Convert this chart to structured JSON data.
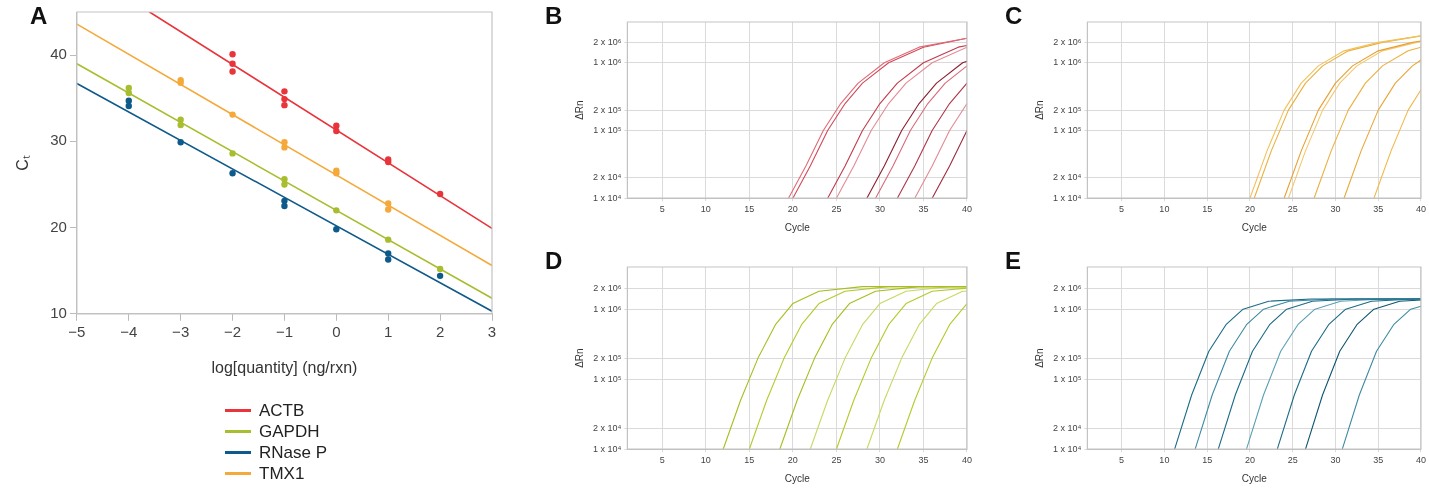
{
  "chart_data": [
    {
      "type": "scatter",
      "title": "A",
      "xlabel": "log[quantity] (ng/rxn)",
      "ylabel": "Cₜ",
      "xlim": [
        -5,
        3
      ],
      "xticks": [
        {
          "value": -5,
          "label": "−5"
        },
        {
          "value": -4,
          "label": "−4"
        },
        {
          "value": -3,
          "label": "−3"
        },
        {
          "value": -2,
          "label": "−2"
        },
        {
          "value": -1,
          "label": "−1"
        },
        0,
        1,
        2,
        3
      ],
      "ylim": [
        10,
        45
      ],
      "yticks": [
        10,
        20,
        30,
        40
      ],
      "grid": false,
      "legend": "bottom",
      "series": [
        {
          "name": "ACTB",
          "type": "line",
          "marker": "none",
          "color": "#e8343a",
          "x": [
            -3.6,
            3
          ],
          "values": [
            45,
            19.9
          ]
        },
        {
          "name": "GAPDH",
          "type": "line",
          "marker": "none",
          "color": "#a8bd2f",
          "x": [
            -5,
            3
          ],
          "values": [
            39.0,
            11.8
          ]
        },
        {
          "name": "RNase P",
          "type": "line",
          "marker": "none",
          "color": "#0e5a8a",
          "x": [
            -5,
            3
          ],
          "values": [
            36.7,
            10.3
          ]
        },
        {
          "name": "TMX1",
          "type": "line",
          "marker": "none",
          "color": "#f5a93a",
          "x": [
            -5,
            3
          ],
          "values": [
            43.6,
            15.6
          ]
        },
        {
          "type": "scatter",
          "marker": "circle",
          "color": "#e8343a",
          "x": [
            -2,
            -2,
            -2,
            -1,
            -1,
            -1,
            0,
            0,
            1,
            1,
            2
          ],
          "values": [
            40.1,
            39.0,
            38.1,
            35.8,
            34.9,
            34.2,
            31.8,
            31.2,
            27.9,
            27.6,
            23.9
          ]
        },
        {
          "type": "scatter",
          "marker": "circle",
          "color": "#a8bd2f",
          "x": [
            -4,
            -4,
            -3,
            -3,
            -2,
            -1,
            -1,
            0,
            1,
            2
          ],
          "values": [
            36.2,
            35.6,
            32.5,
            31.9,
            28.6,
            25.6,
            25.0,
            22.0,
            18.6,
            15.2
          ]
        },
        {
          "type": "scatter",
          "marker": "circle",
          "color": "#0e5a8a",
          "x": [
            -4,
            -4,
            -3,
            -2,
            -1,
            -1,
            0,
            1,
            1,
            2
          ],
          "values": [
            34.7,
            34.1,
            29.9,
            26.3,
            23.1,
            22.5,
            19.8,
            17.0,
            16.3,
            14.4
          ]
        },
        {
          "type": "scatter",
          "marker": "circle",
          "color": "#f5a93a",
          "x": [
            -3,
            -3,
            -2,
            -1,
            -1,
            0,
            0,
            1,
            1
          ],
          "values": [
            37.1,
            36.8,
            33.1,
            29.9,
            29.3,
            26.6,
            26.3,
            22.8,
            22.1
          ]
        }
      ]
    },
    {
      "type": "line",
      "title": "B",
      "xlabel": "Cycle",
      "ylabel": "ΔRn",
      "log": "y",
      "xlim": [
        1,
        40
      ],
      "xticks": [
        5,
        10,
        15,
        20,
        25,
        30,
        35,
        40
      ],
      "ylim": [
        10000,
        4000000
      ],
      "yticks": [
        {
          "value": 10000,
          "label": "1 x 10⁴"
        },
        {
          "value": 20000,
          "label": "2 x 10⁴"
        },
        {
          "value": 100000,
          "label": "1 x 10⁵"
        },
        {
          "value": 200000,
          "label": "2 x 10⁵"
        },
        {
          "value": 1000000,
          "label": "1 x 10⁶"
        },
        {
          "value": 2000000,
          "label": "2 x 10⁶"
        }
      ],
      "grid": true,
      "marker": "none",
      "series": [
        {
          "color": "#e06a76",
          "x": [
            19.5,
            21.5,
            23.5,
            25.5,
            27.5,
            30.5,
            34.5,
            40
          ],
          "values": [
            10000,
            30000,
            100000,
            250000,
            500000,
            1000000,
            1700000,
            2300000
          ]
        },
        {
          "color": "#d04a5a",
          "x": [
            20,
            22,
            24,
            26,
            28,
            31,
            35,
            40
          ],
          "values": [
            10000,
            30000,
            100000,
            250000,
            500000,
            1000000,
            1700000,
            2300000
          ]
        },
        {
          "color": "#c23a4c",
          "x": [
            24,
            26,
            28,
            30,
            32,
            35,
            39,
            40
          ],
          "values": [
            10000,
            30000,
            100000,
            250000,
            500000,
            1000000,
            1700000,
            1800000
          ]
        },
        {
          "color": "#e48a94",
          "x": [
            25,
            27,
            29,
            31,
            33,
            36,
            40
          ],
          "values": [
            10000,
            30000,
            100000,
            250000,
            500000,
            1000000,
            1700000
          ]
        },
        {
          "color": "#8c1d2e",
          "x": [
            28.5,
            30.5,
            32.5,
            34.5,
            36.5,
            39.5,
            40
          ],
          "values": [
            10000,
            30000,
            100000,
            250000,
            500000,
            1000000,
            1050000
          ]
        },
        {
          "color": "#d86a7a",
          "x": [
            29.5,
            31.5,
            33.5,
            35.5,
            37.5,
            40
          ],
          "values": [
            10000,
            30000,
            100000,
            250000,
            500000,
            900000
          ]
        },
        {
          "color": "#b03448",
          "x": [
            32,
            34,
            36,
            38,
            40
          ],
          "values": [
            10000,
            30000,
            100000,
            250000,
            500000
          ]
        },
        {
          "color": "#e08a96",
          "x": [
            34,
            36,
            38,
            40
          ],
          "values": [
            10000,
            30000,
            100000,
            250000
          ]
        },
        {
          "color": "#a02a40",
          "x": [
            36,
            38,
            40
          ],
          "values": [
            10000,
            30000,
            100000
          ]
        }
      ]
    },
    {
      "type": "line",
      "title": "C",
      "xlabel": "Cycle",
      "ylabel": "ΔRn",
      "log": "y",
      "xlim": [
        1,
        40
      ],
      "xticks": [
        5,
        10,
        15,
        20,
        25,
        30,
        35,
        40
      ],
      "ylim": [
        10000,
        4000000
      ],
      "yticks": [
        {
          "value": 10000,
          "label": "1 x 10⁴"
        },
        {
          "value": 20000,
          "label": "2 x 10⁴"
        },
        {
          "value": 100000,
          "label": "1 x 10⁵"
        },
        {
          "value": 200000,
          "label": "2 x 10⁵"
        },
        {
          "value": 1000000,
          "label": "1 x 10⁶"
        },
        {
          "value": 2000000,
          "label": "2 x 10⁶"
        }
      ],
      "grid": true,
      "marker": "none",
      "series": [
        {
          "color": "#f2c25a",
          "x": [
            20,
            22,
            24,
            26,
            28,
            31,
            35,
            40
          ],
          "values": [
            10000,
            50000,
            200000,
            500000,
            900000,
            1500000,
            2000000,
            2500000
          ]
        },
        {
          "color": "#eab040",
          "x": [
            20.5,
            22.5,
            24.5,
            26.5,
            28.5,
            31.5,
            35.5,
            40
          ],
          "values": [
            10000,
            50000,
            200000,
            500000,
            900000,
            1500000,
            2000000,
            2500000
          ]
        },
        {
          "color": "#e8a030",
          "x": [
            24,
            26,
            28,
            30,
            32,
            35,
            39,
            40
          ],
          "values": [
            10000,
            50000,
            200000,
            500000,
            900000,
            1500000,
            2000000,
            2100000
          ]
        },
        {
          "color": "#f4c870",
          "x": [
            24.5,
            26.5,
            28.5,
            30.5,
            32.5,
            35.5,
            39.5,
            40
          ],
          "values": [
            10000,
            50000,
            200000,
            500000,
            900000,
            1500000,
            2000000,
            2100000
          ]
        },
        {
          "color": "#eab040",
          "x": [
            27.5,
            29.5,
            31.5,
            33.5,
            35.5,
            38.5,
            40
          ],
          "values": [
            10000,
            50000,
            200000,
            500000,
            900000,
            1500000,
            1700000
          ]
        },
        {
          "color": "#e8a838",
          "x": [
            31,
            33,
            35,
            37,
            39,
            40
          ],
          "values": [
            10000,
            50000,
            200000,
            500000,
            900000,
            1100000
          ]
        },
        {
          "color": "#f0b84a",
          "x": [
            34.5,
            36.5,
            38.5,
            40
          ],
          "values": [
            10000,
            50000,
            200000,
            400000
          ]
        }
      ]
    },
    {
      "type": "line",
      "title": "D",
      "xlabel": "Cycle",
      "ylabel": "ΔRn",
      "log": "y",
      "xlim": [
        1,
        40
      ],
      "xticks": [
        5,
        10,
        15,
        20,
        25,
        30,
        35,
        40
      ],
      "ylim": [
        10000,
        4000000
      ],
      "yticks": [
        {
          "value": 10000,
          "label": "1 x 10⁴"
        },
        {
          "value": 20000,
          "label": "2 x 10⁴"
        },
        {
          "value": 100000,
          "label": "1 x 10⁵"
        },
        {
          "value": 200000,
          "label": "2 x 10⁵"
        },
        {
          "value": 1000000,
          "label": "1 x 10⁶"
        },
        {
          "value": 2000000,
          "label": "2 x 10⁶"
        }
      ],
      "grid": true,
      "marker": "none",
      "series": [
        {
          "color": "#a8bd1e",
          "x": [
            12,
            14,
            16,
            18,
            20,
            23,
            28,
            40
          ],
          "values": [
            10000,
            50000,
            200000,
            600000,
            1200000,
            1800000,
            2100000,
            2100000
          ]
        },
        {
          "color": "#b5c92a",
          "x": [
            15,
            17,
            19,
            21,
            23,
            26,
            31,
            40
          ],
          "values": [
            10000,
            50000,
            200000,
            600000,
            1200000,
            1800000,
            2100000,
            2100000
          ]
        },
        {
          "color": "#a8bd1e",
          "x": [
            18.5,
            20.5,
            22.5,
            24.5,
            26.5,
            29.5,
            34.5,
            40
          ],
          "values": [
            10000,
            50000,
            200000,
            600000,
            1200000,
            1800000,
            2100000,
            2100000
          ]
        },
        {
          "color": "#c8d860",
          "x": [
            22,
            24,
            26,
            28,
            30,
            33,
            38,
            40
          ],
          "values": [
            10000,
            50000,
            200000,
            600000,
            1200000,
            1800000,
            2100000,
            2100000
          ]
        },
        {
          "color": "#b5c92a",
          "x": [
            25,
            27,
            29,
            31,
            33,
            36,
            40
          ],
          "values": [
            10000,
            50000,
            200000,
            600000,
            1200000,
            1800000,
            2000000
          ]
        },
        {
          "color": "#c8d860",
          "x": [
            28.5,
            30.5,
            32.5,
            34.5,
            36.5,
            39.5,
            40
          ],
          "values": [
            10000,
            50000,
            200000,
            600000,
            1200000,
            1800000,
            1800000
          ]
        },
        {
          "color": "#b5c92a",
          "x": [
            32,
            34,
            36,
            38,
            40
          ],
          "values": [
            10000,
            50000,
            200000,
            600000,
            1200000
          ]
        }
      ]
    },
    {
      "type": "line",
      "title": "E",
      "xlabel": "Cycle",
      "ylabel": "ΔRn",
      "log": "y",
      "xlim": [
        1,
        40
      ],
      "xticks": [
        5,
        10,
        15,
        20,
        25,
        30,
        35,
        40
      ],
      "ylim": [
        10000,
        4000000
      ],
      "yticks": [
        {
          "value": 10000,
          "label": "1 x 10⁴"
        },
        {
          "value": 20000,
          "label": "2 x 10⁴"
        },
        {
          "value": 100000,
          "label": "1 x 10⁵"
        },
        {
          "value": 200000,
          "label": "2 x 10⁵"
        },
        {
          "value": 1000000,
          "label": "1 x 10⁶"
        },
        {
          "value": 2000000,
          "label": "2 x 10⁶"
        }
      ],
      "grid": true,
      "marker": "none",
      "series": [
        {
          "color": "#1a6b86",
          "x": [
            11.2,
            13.2,
            15.2,
            17.2,
            19.2,
            22.2,
            27.2,
            40
          ],
          "values": [
            10000,
            60000,
            250000,
            600000,
            1000000,
            1300000,
            1400000,
            1400000
          ]
        },
        {
          "color": "#3e8aa2",
          "x": [
            13.6,
            15.6,
            17.6,
            19.6,
            21.6,
            24.6,
            29.6,
            40
          ],
          "values": [
            10000,
            60000,
            250000,
            600000,
            1000000,
            1300000,
            1400000,
            1400000
          ]
        },
        {
          "color": "#1a6b86",
          "x": [
            16.3,
            18.3,
            20.3,
            22.3,
            24.3,
            27.3,
            32.3,
            40
          ],
          "values": [
            10000,
            60000,
            250000,
            600000,
            1000000,
            1300000,
            1400000,
            1400000
          ]
        },
        {
          "color": "#5a9fb4",
          "x": [
            19.6,
            21.6,
            23.6,
            25.6,
            27.6,
            30.6,
            35.6,
            40
          ],
          "values": [
            10000,
            60000,
            250000,
            600000,
            1000000,
            1300000,
            1400000,
            1400000
          ]
        },
        {
          "color": "#1a6b86",
          "x": [
            23.2,
            25.2,
            27.2,
            29.2,
            31.2,
            34.2,
            39.2,
            40
          ],
          "values": [
            10000,
            60000,
            250000,
            600000,
            1000000,
            1300000,
            1400000,
            1400000
          ]
        },
        {
          "color": "#0e5470",
          "x": [
            26.5,
            28.5,
            30.5,
            32.5,
            34.5,
            37.5,
            40
          ],
          "values": [
            10000,
            60000,
            250000,
            600000,
            1000000,
            1300000,
            1350000
          ]
        },
        {
          "color": "#3e8aa2",
          "x": [
            30.8,
            32.8,
            34.8,
            36.8,
            38.8,
            40
          ],
          "values": [
            10000,
            60000,
            250000,
            600000,
            1000000,
            1100000
          ]
        }
      ]
    }
  ]
}
